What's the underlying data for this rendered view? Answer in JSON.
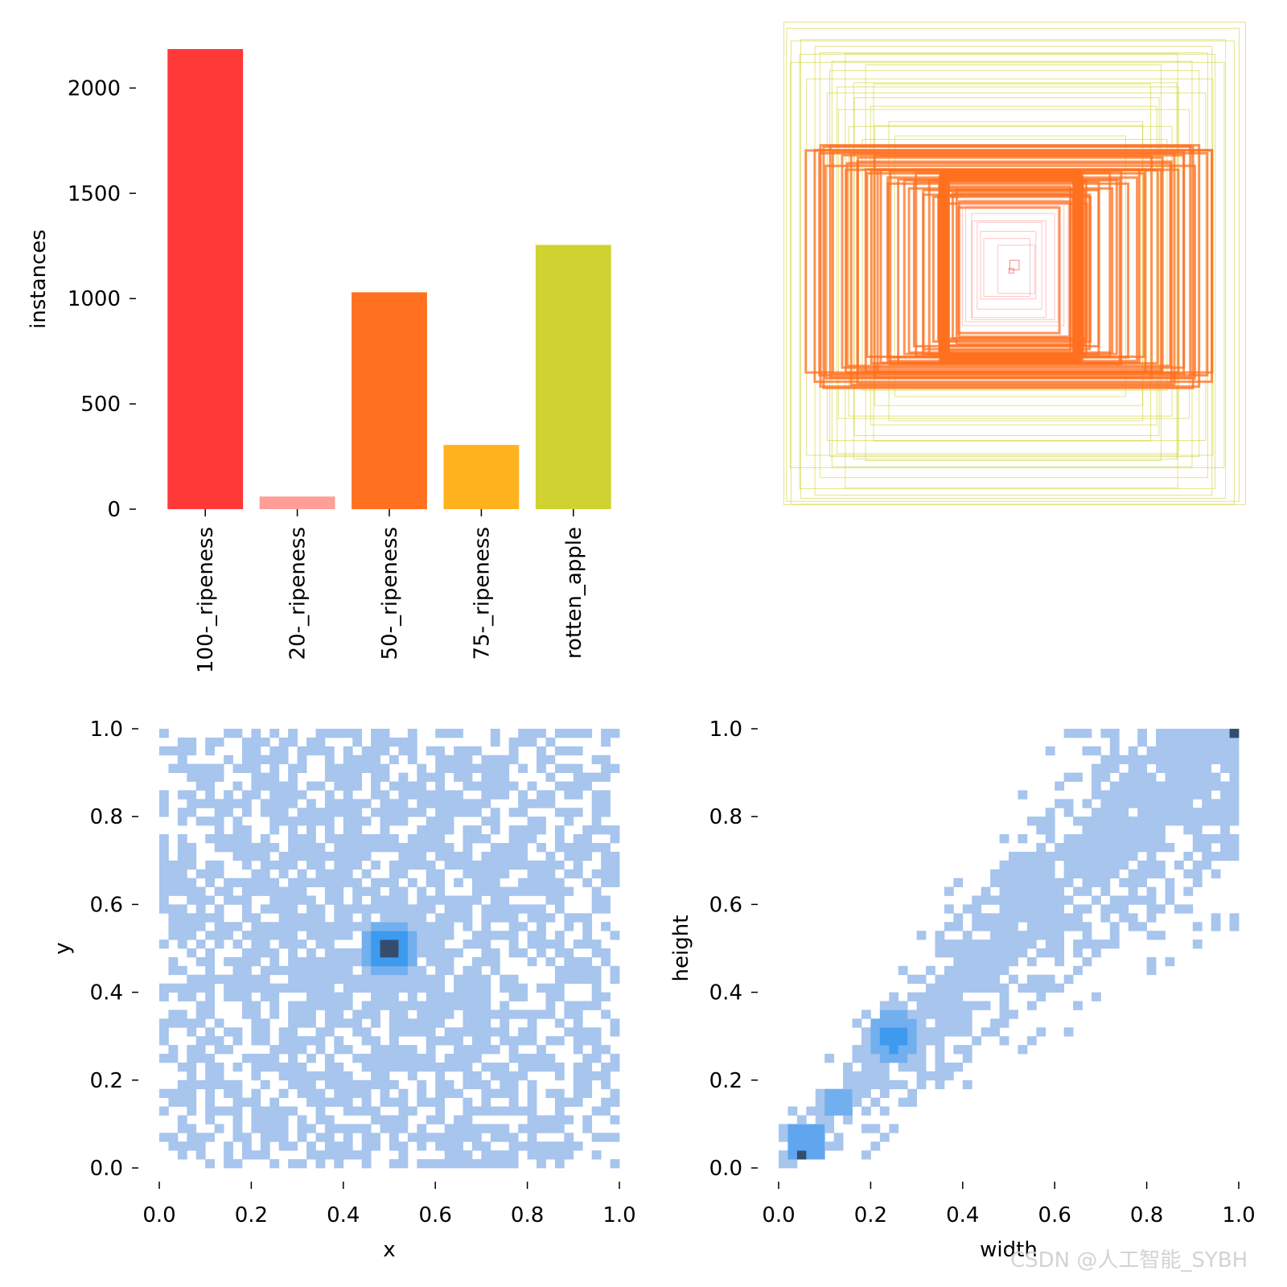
{
  "watermark": "CSDN @人工智能_SYBH",
  "chart_data": [
    {
      "type": "bar",
      "categories": [
        "100-_ripeness",
        "20-_ripeness",
        "50-_ripeness",
        "75-_ripeness",
        "rotten_apple"
      ],
      "values": [
        2185,
        60,
        1030,
        305,
        1255
      ],
      "colors": [
        "#ff3838",
        "#ff9d97",
        "#ff701f",
        "#ffb21d",
        "#cfd231"
      ],
      "ylabel": "instances",
      "yticks": [
        0,
        500,
        1000,
        1500,
        2000
      ],
      "tick_labels": [
        "0",
        "500",
        "1000",
        "1500",
        "2000"
      ],
      "ylim": [
        0,
        2185
      ]
    },
    {
      "type": "box_overlay",
      "series": [
        {
          "color": "#cfd231",
          "boxes": [
            [
              0.98,
              0.98
            ],
            [
              0.96,
              0.96
            ],
            [
              0.92,
              0.95
            ],
            [
              0.9,
              0.9
            ],
            [
              0.86,
              0.93
            ],
            [
              0.84,
              0.88
            ],
            [
              0.8,
              0.8
            ],
            [
              0.78,
              0.84
            ],
            [
              0.74,
              0.76
            ],
            [
              0.7,
              0.78
            ],
            [
              0.66,
              0.7
            ],
            [
              0.62,
              0.66
            ],
            [
              0.58,
              0.58
            ],
            [
              0.55,
              0.62
            ],
            [
              0.5,
              0.54
            ],
            [
              1.0,
              1.0
            ],
            [
              0.94,
              0.84
            ],
            [
              0.88,
              0.78
            ],
            [
              0.82,
              0.72
            ],
            [
              0.76,
              0.64
            ],
            [
              0.7,
              0.6
            ],
            [
              0.66,
              0.52
            ],
            [
              0.72,
              0.9
            ],
            [
              0.64,
              0.82
            ],
            [
              0.6,
              0.74
            ]
          ]
        },
        {
          "color": "#ff701f",
          "boxes": [
            [
              0.86,
              0.48
            ],
            [
              0.84,
              0.46
            ],
            [
              0.82,
              0.5
            ],
            [
              0.8,
              0.44
            ],
            [
              0.78,
              0.48
            ],
            [
              0.76,
              0.46
            ],
            [
              0.74,
              0.44
            ],
            [
              0.7,
              0.42
            ],
            [
              0.66,
              0.44
            ],
            [
              0.62,
              0.4
            ],
            [
              0.58,
              0.42
            ],
            [
              0.54,
              0.38
            ],
            [
              0.5,
              0.4
            ],
            [
              0.46,
              0.36
            ],
            [
              0.42,
              0.38
            ],
            [
              0.38,
              0.34
            ],
            [
              0.34,
              0.36
            ],
            [
              0.3,
              0.32
            ],
            [
              0.28,
              0.34
            ],
            [
              0.26,
              0.3
            ],
            [
              0.24,
              0.28
            ],
            [
              0.22,
              0.26
            ],
            [
              0.26,
              0.32
            ],
            [
              0.3,
              0.3
            ],
            [
              0.32,
              0.28
            ],
            [
              0.34,
              0.3
            ],
            [
              0.36,
              0.32
            ],
            [
              0.4,
              0.34
            ],
            [
              0.44,
              0.34
            ],
            [
              0.48,
              0.38
            ],
            [
              0.52,
              0.36
            ],
            [
              0.56,
              0.4
            ],
            [
              0.6,
              0.38
            ],
            [
              0.64,
              0.42
            ],
            [
              0.68,
              0.46
            ],
            [
              0.72,
              0.42
            ],
            [
              0.88,
              0.46
            ],
            [
              0.8,
              0.5
            ],
            [
              0.7,
              0.48
            ],
            [
              0.6,
              0.46
            ]
          ]
        },
        {
          "color": "#ff9d97",
          "boxes": [
            [
              0.24,
              0.28
            ],
            [
              0.22,
              0.26
            ],
            [
              0.2,
              0.24
            ],
            [
              0.18,
              0.22
            ],
            [
              0.16,
              0.2
            ],
            [
              0.14,
              0.18
            ],
            [
              0.12,
              0.14
            ],
            [
              0.1,
              0.12
            ],
            [
              0.08,
              0.1
            ]
          ]
        },
        {
          "color": "#ff3838",
          "boxes": [
            [
              0.01,
              0.01
            ],
            [
              0.02,
              0.02
            ]
          ]
        }
      ]
    },
    {
      "type": "heatmap",
      "xlabel": "x",
      "ylabel": "y",
      "xlim": [
        0,
        1
      ],
      "ylim": [
        0,
        1
      ],
      "bins": 50,
      "cell_color": "#a7c5ed",
      "peak": {
        "x": 0.5,
        "y": 0.5
      },
      "xticks": [
        0.0,
        0.2,
        0.4,
        0.6,
        0.8,
        1.0
      ],
      "yticks": [
        0.0,
        0.2,
        0.4,
        0.6,
        0.8,
        1.0
      ],
      "xtick_labels": [
        "0.0",
        "0.2",
        "0.4",
        "0.6",
        "0.8",
        "1.0"
      ],
      "ytick_labels": [
        "0.0",
        "0.2",
        "0.4",
        "0.6",
        "0.8",
        "1.0"
      ]
    },
    {
      "type": "heatmap",
      "xlabel": "width",
      "ylabel": "height",
      "xlim": [
        0,
        1
      ],
      "ylim": [
        0,
        1
      ],
      "bins": 50,
      "cell_color": "#a7c5ed",
      "peaks": [
        {
          "x": 0.05,
          "y": 0.03
        },
        {
          "x": 0.25,
          "y": 0.3
        },
        {
          "x": 0.13,
          "y": 0.15
        },
        {
          "x": 0.99,
          "y": 0.99
        }
      ],
      "xticks": [
        0.0,
        0.2,
        0.4,
        0.6,
        0.8,
        1.0
      ],
      "yticks": [
        0.0,
        0.2,
        0.4,
        0.6,
        0.8,
        1.0
      ],
      "xtick_labels": [
        "0.0",
        "0.2",
        "0.4",
        "0.6",
        "0.8",
        "1.0"
      ],
      "ytick_labels": [
        "0.0",
        "0.2",
        "0.4",
        "0.6",
        "0.8",
        "1.0"
      ]
    }
  ]
}
